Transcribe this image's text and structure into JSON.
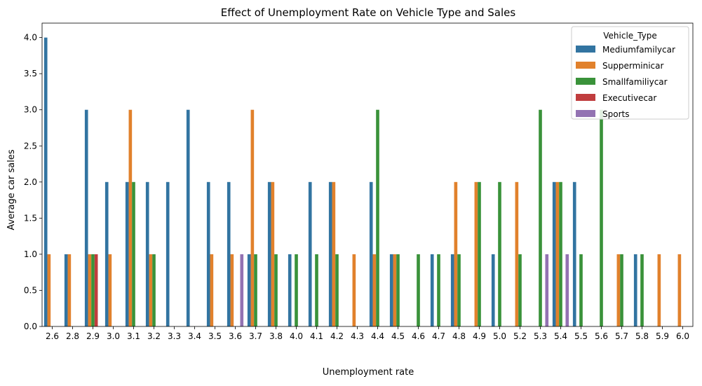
{
  "chart_data": {
    "type": "bar",
    "title": "Effect of Unemployment Rate on Vehicle Type and Sales",
    "xlabel": "Unemployment rate",
    "ylabel": "Average car sales",
    "ylim": [
      0,
      4.2
    ],
    "yticks": [
      0.0,
      0.5,
      1.0,
      1.5,
      2.0,
      2.5,
      3.0,
      3.5,
      4.0
    ],
    "ytick_labels": [
      "0.0",
      "0.5",
      "1.0",
      "1.5",
      "2.0",
      "2.5",
      "3.0",
      "3.5",
      "4.0"
    ],
    "grid": false,
    "legend_title": "Vehicle_Type",
    "legend_position": "top-right",
    "categories": [
      "2.6",
      "2.8",
      "2.9",
      "3.0",
      "3.1",
      "3.2",
      "3.3",
      "3.4",
      "3.5",
      "3.6",
      "3.7",
      "3.8",
      "4.0",
      "4.1",
      "4.2",
      "4.3",
      "4.4",
      "4.5",
      "4.6",
      "4.7",
      "4.8",
      "4.9",
      "5.0",
      "5.2",
      "5.3",
      "5.4",
      "5.5",
      "5.6",
      "5.7",
      "5.8",
      "5.9",
      "6.0"
    ],
    "series": [
      {
        "name": "Mediumfamilycar",
        "color": "#3274a1",
        "values": [
          4,
          1,
          3,
          2,
          2,
          2,
          2,
          3,
          2,
          2,
          1,
          2,
          1,
          2,
          2,
          null,
          2,
          1,
          null,
          1,
          1,
          null,
          1,
          null,
          null,
          2,
          2,
          null,
          null,
          1,
          null,
          null
        ]
      },
      {
        "name": "Supperminicar",
        "color": "#e1812c",
        "values": [
          1,
          1,
          1,
          1,
          3,
          1,
          null,
          null,
          1,
          1,
          3,
          2,
          null,
          null,
          2,
          1,
          1,
          1,
          null,
          null,
          2,
          2,
          null,
          2,
          null,
          2,
          null,
          null,
          1,
          null,
          1,
          1
        ]
      },
      {
        "name": "Smallfamiliycar",
        "color": "#3a923a",
        "values": [
          null,
          null,
          1,
          null,
          2,
          1,
          null,
          null,
          null,
          null,
          1,
          1,
          1,
          1,
          1,
          null,
          3,
          1,
          1,
          1,
          1,
          2,
          2,
          1,
          3,
          2,
          1,
          3,
          1,
          1,
          null,
          null
        ]
      },
      {
        "name": "Executivecar",
        "color": "#c03d3e",
        "values": [
          null,
          null,
          1,
          null,
          null,
          null,
          null,
          null,
          null,
          null,
          null,
          null,
          null,
          null,
          null,
          null,
          null,
          null,
          null,
          null,
          null,
          null,
          null,
          null,
          null,
          null,
          null,
          null,
          null,
          null,
          null,
          null
        ]
      },
      {
        "name": "Sports",
        "color": "#9372b2",
        "values": [
          null,
          null,
          null,
          null,
          null,
          null,
          null,
          null,
          null,
          1,
          null,
          null,
          null,
          null,
          null,
          null,
          null,
          null,
          null,
          null,
          null,
          null,
          null,
          null,
          1,
          1,
          null,
          null,
          null,
          null,
          null,
          null
        ]
      }
    ]
  }
}
